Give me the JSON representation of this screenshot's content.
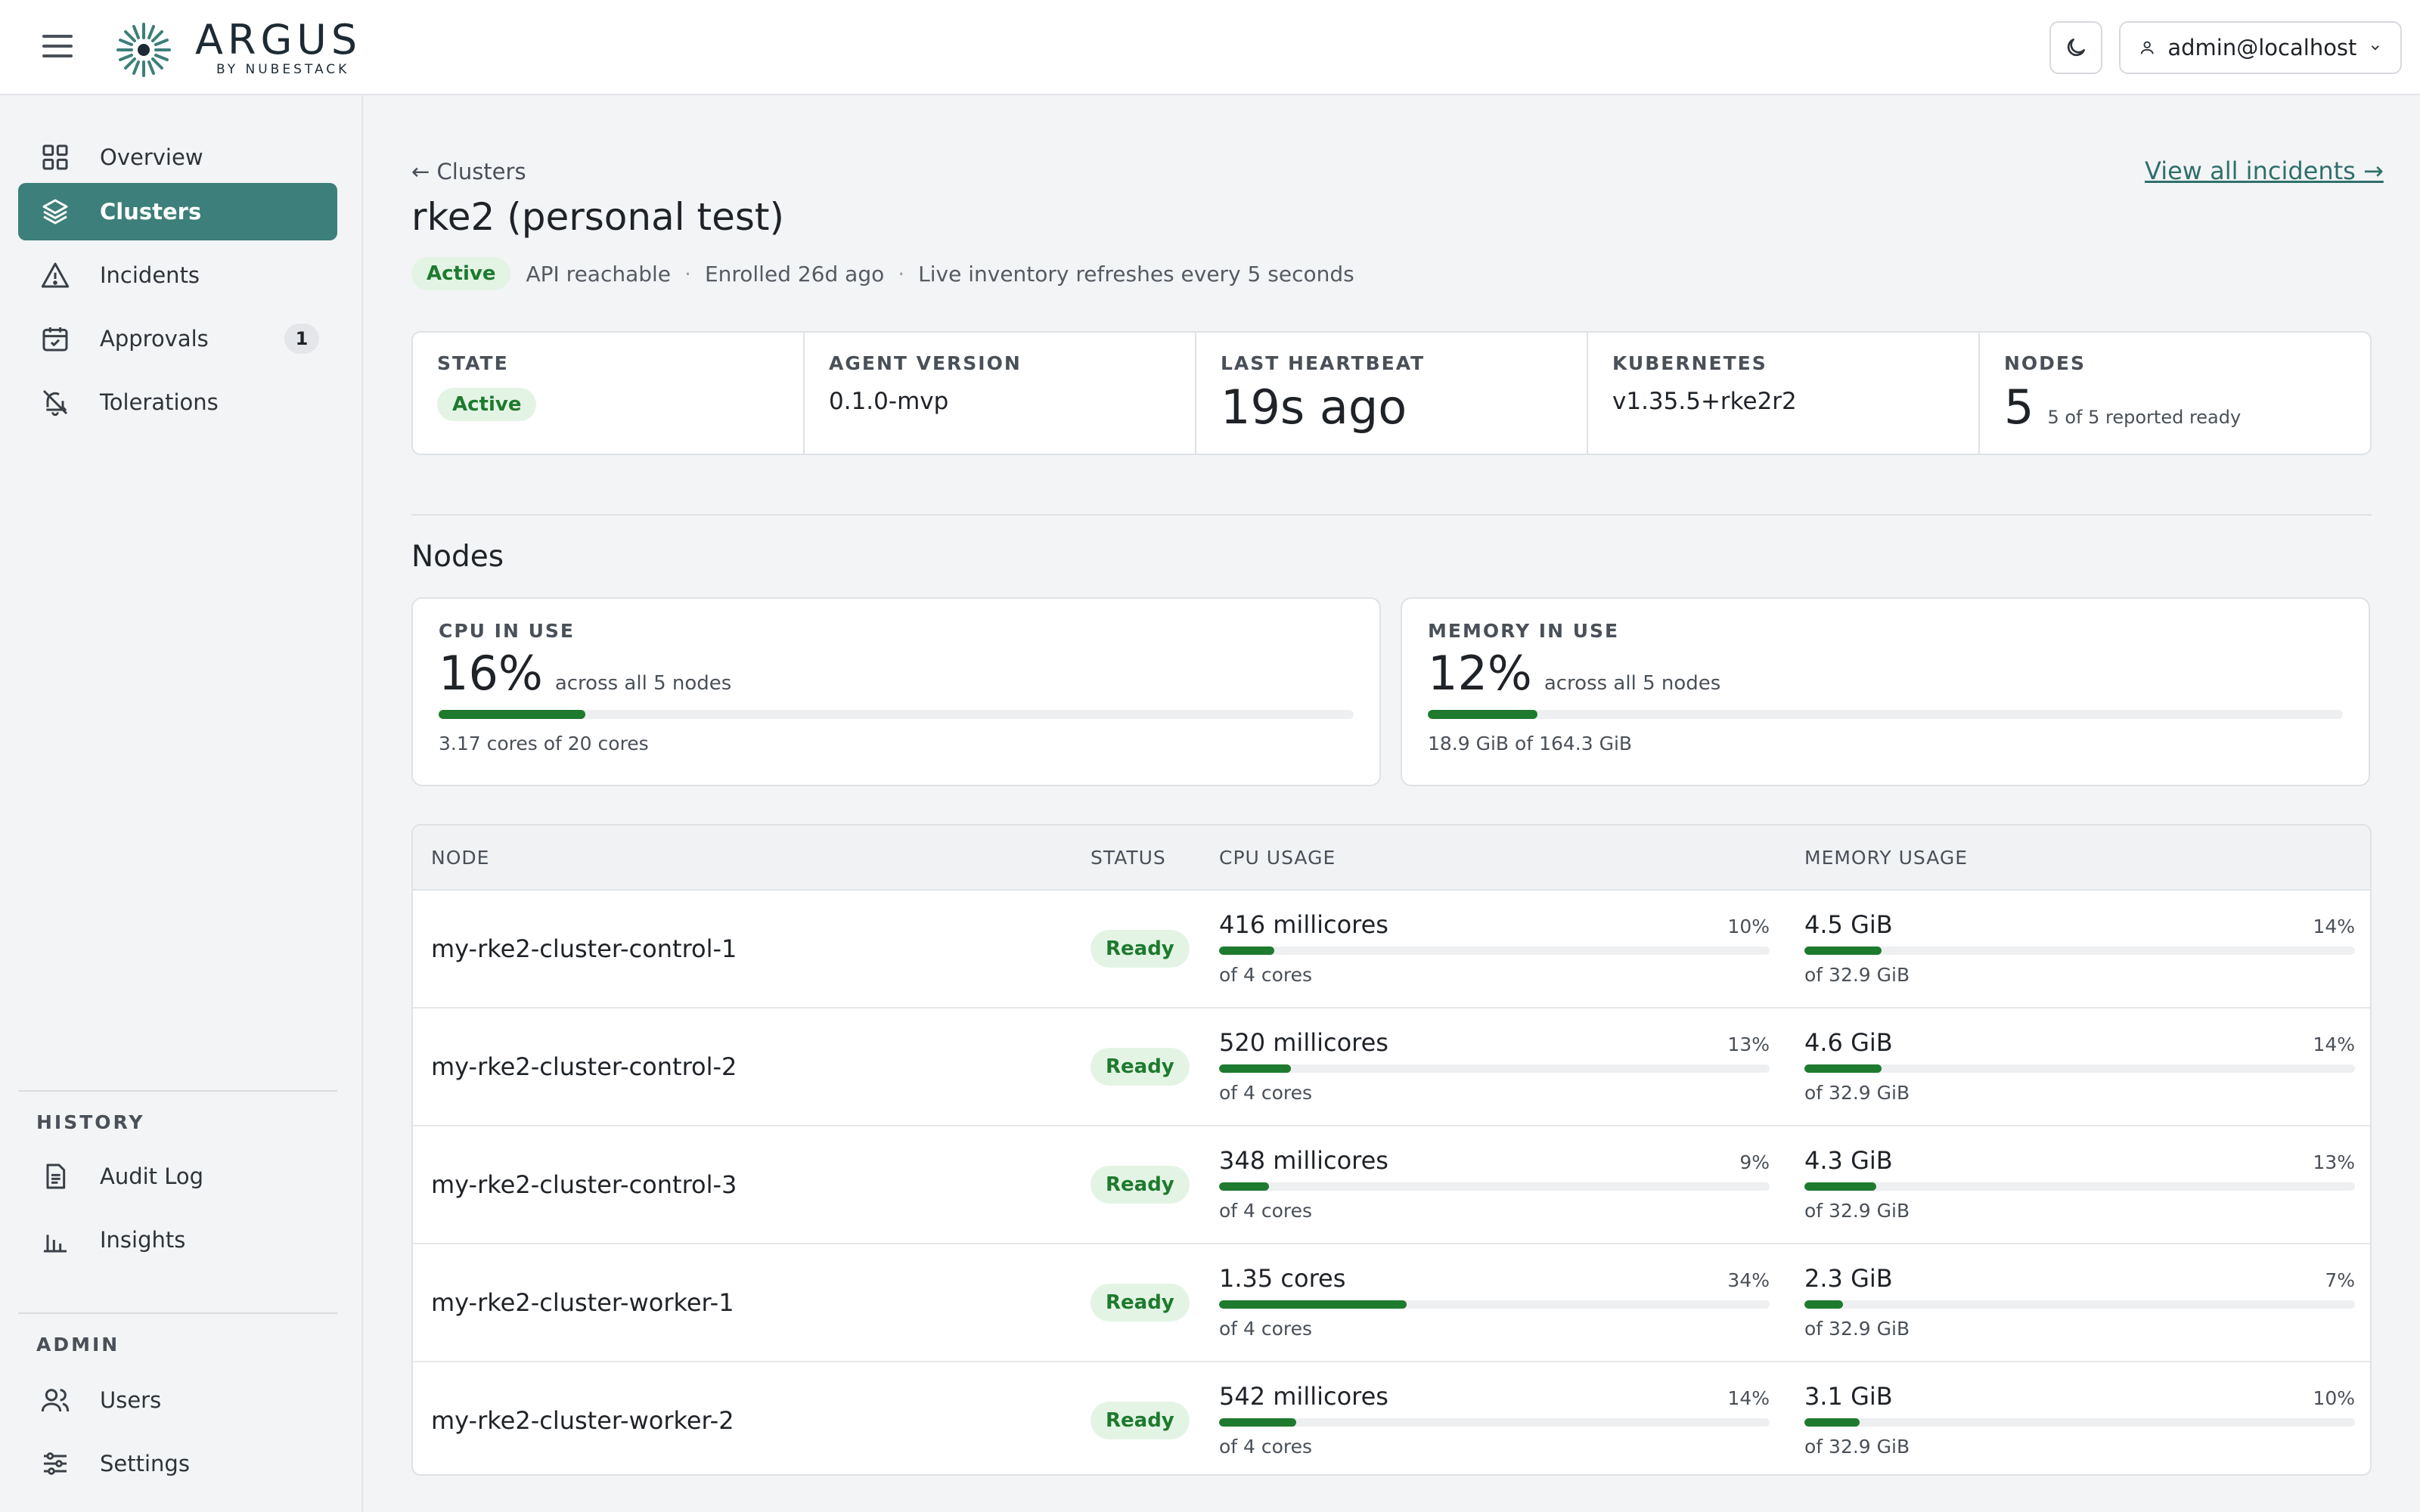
{
  "header": {
    "brand": "ARGUS",
    "brand_sub": "BY NUBESTACK",
    "user": "admin@localhost"
  },
  "sidebar": {
    "items": [
      {
        "label": "Overview",
        "icon": "grid-icon"
      },
      {
        "label": "Clusters",
        "icon": "layers-icon",
        "active": true
      },
      {
        "label": "Incidents",
        "icon": "warning-icon"
      },
      {
        "label": "Approvals",
        "icon": "calendar-check-icon",
        "badge": "1"
      },
      {
        "label": "Tolerations",
        "icon": "bell-off-icon"
      }
    ],
    "history_heading": "HISTORY",
    "history_items": [
      {
        "label": "Audit Log",
        "icon": "document-icon"
      },
      {
        "label": "Insights",
        "icon": "bar-chart-icon"
      }
    ],
    "admin_heading": "ADMIN",
    "admin_items": [
      {
        "label": "Users",
        "icon": "users-icon"
      },
      {
        "label": "Settings",
        "icon": "sliders-icon"
      }
    ]
  },
  "page": {
    "back": "← Clusters",
    "incidents_link": "View all incidents →",
    "title": "rke2 (personal test)",
    "status": "Active",
    "api": "API reachable",
    "enrolled": "Enrolled 26d ago",
    "refresh": "Live inventory refreshes every 5 seconds"
  },
  "summary": {
    "state_label": "STATE",
    "state_value": "Active",
    "agent_label": "AGENT VERSION",
    "agent_value": "0.1.0-mvp",
    "heartbeat_label": "LAST HEARTBEAT",
    "heartbeat_value": "19s ago",
    "k8s_label": "KUBERNETES",
    "k8s_value": "v1.35.5+rke2r2",
    "nodes_label": "NODES",
    "nodes_value": "5",
    "nodes_sub": "5 of 5 reported ready"
  },
  "nodes_section": {
    "title": "Nodes",
    "cpu": {
      "label": "CPU IN USE",
      "pct": "16%",
      "fraction": 0.16,
      "across": "across all 5 nodes",
      "detail": "3.17 cores of 20 cores"
    },
    "memory": {
      "label": "MEMORY IN USE",
      "pct": "12%",
      "fraction": 0.12,
      "across": "across all 5 nodes",
      "detail": "18.9 GiB of 164.3 GiB"
    }
  },
  "table": {
    "columns": [
      "NODE",
      "STATUS",
      "CPU USAGE",
      "MEMORY USAGE"
    ],
    "rows": [
      {
        "node": "my-rke2-cluster-control-1",
        "status": "Ready",
        "cpu": "416 millicores",
        "cpu_pct": "10%",
        "cpu_frac": 0.1,
        "cpu_of": "of 4 cores",
        "mem": "4.5 GiB",
        "mem_pct": "14%",
        "mem_frac": 0.14,
        "mem_of": "of 32.9 GiB"
      },
      {
        "node": "my-rke2-cluster-control-2",
        "status": "Ready",
        "cpu": "520 millicores",
        "cpu_pct": "13%",
        "cpu_frac": 0.13,
        "cpu_of": "of 4 cores",
        "mem": "4.6 GiB",
        "mem_pct": "14%",
        "mem_frac": 0.14,
        "mem_of": "of 32.9 GiB"
      },
      {
        "node": "my-rke2-cluster-control-3",
        "status": "Ready",
        "cpu": "348 millicores",
        "cpu_pct": "9%",
        "cpu_frac": 0.09,
        "cpu_of": "of 4 cores",
        "mem": "4.3 GiB",
        "mem_pct": "13%",
        "mem_frac": 0.13,
        "mem_of": "of 32.9 GiB"
      },
      {
        "node": "my-rke2-cluster-worker-1",
        "status": "Ready",
        "cpu": "1.35 cores",
        "cpu_pct": "34%",
        "cpu_frac": 0.34,
        "cpu_of": "of 4 cores",
        "mem": "2.3 GiB",
        "mem_pct": "7%",
        "mem_frac": 0.07,
        "mem_of": "of 32.9 GiB"
      },
      {
        "node": "my-rke2-cluster-worker-2",
        "status": "Ready",
        "cpu": "542 millicores",
        "cpu_pct": "14%",
        "cpu_frac": 0.14,
        "cpu_of": "of 4 cores",
        "mem": "3.1 GiB",
        "mem_pct": "10%",
        "mem_frac": 0.1,
        "mem_of": "of 32.9 GiB"
      }
    ]
  },
  "colors": {
    "accent": "#3d7f7a",
    "ready_green": "#1e7a2e",
    "ready_bg": "#e3f4e5"
  }
}
